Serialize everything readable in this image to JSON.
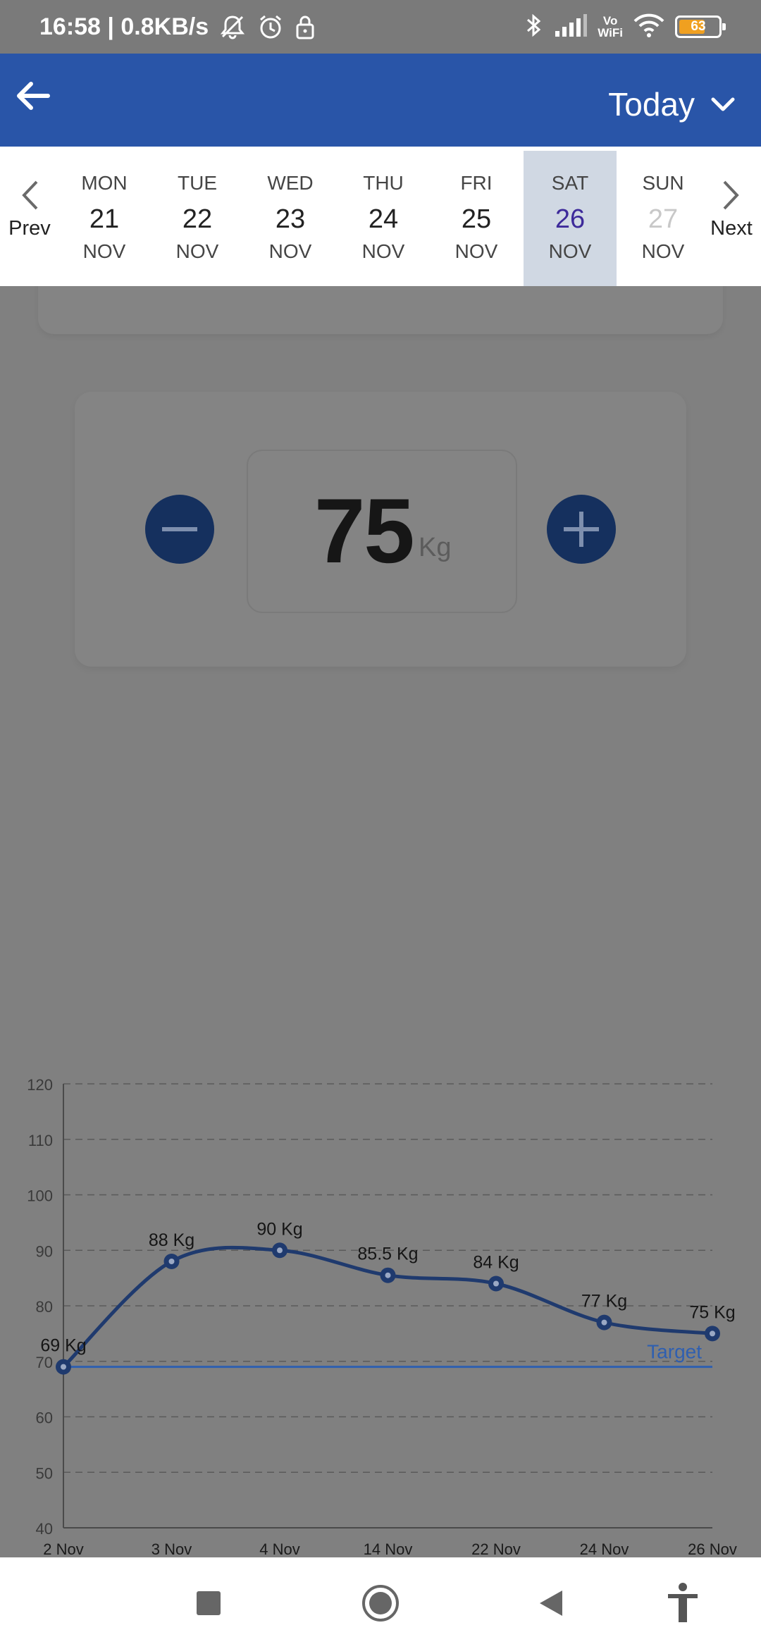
{
  "status_bar": {
    "time": "16:58",
    "network_speed": "0.8KB/s",
    "battery_level": "63",
    "wifi_label_top": "Vo",
    "wifi_label_bottom": "WiFi",
    "icons": [
      "mute-icon",
      "alarm-icon",
      "lock-icon",
      "bluetooth-icon",
      "signal-icon",
      "wifi-icon",
      "battery-icon"
    ]
  },
  "app_bar": {
    "back_icon": "arrow-left-icon",
    "period_label": "Today",
    "period_icon": "chevron-down-icon"
  },
  "date_strip": {
    "prev_label": "Prev",
    "next_label": "Next",
    "days": [
      {
        "dow": "MON",
        "num": "21",
        "mon": "NOV"
      },
      {
        "dow": "TUE",
        "num": "22",
        "mon": "NOV"
      },
      {
        "dow": "WED",
        "num": "23",
        "mon": "NOV"
      },
      {
        "dow": "THU",
        "num": "24",
        "mon": "NOV"
      },
      {
        "dow": "FRI",
        "num": "25",
        "mon": "NOV"
      },
      {
        "dow": "SAT",
        "num": "26",
        "mon": "NOV"
      },
      {
        "dow": "SUN",
        "num": "27",
        "mon": "NOV"
      }
    ],
    "selected_day": "26",
    "future_day": "27"
  },
  "weight_entry": {
    "value": "75",
    "unit": "Kg",
    "decrement_icon": "minus-icon",
    "increment_icon": "plus-icon"
  },
  "colors": {
    "app_bar": "#2955a8",
    "overlay": "#808080",
    "button_dark": "#15305e",
    "chart_line": "#1f3a6e",
    "target_line": "#2f5fb0",
    "selected_day_bg": "#d0d8e3",
    "selected_day_text": "#3d2a9a"
  },
  "chart_data": {
    "type": "line",
    "categories": [
      "2 Nov",
      "3 Nov",
      "4 Nov",
      "14 Nov",
      "22 Nov",
      "24 Nov",
      "26 Nov"
    ],
    "values": [
      69,
      88,
      90,
      85.5,
      84,
      77,
      75
    ],
    "data_labels": [
      "69 Kg",
      "88 Kg",
      "90 Kg",
      "85.5 Kg",
      "84 Kg",
      "77 Kg",
      "75 Kg"
    ],
    "y_ticks": [
      40,
      50,
      60,
      70,
      80,
      90,
      100,
      110,
      120
    ],
    "ylim": [
      40,
      120
    ],
    "target": {
      "value": 69,
      "label": "Target"
    },
    "grid": "dashed",
    "smooth": true,
    "title": "",
    "xlabel": "",
    "ylabel": ""
  },
  "bottom_nav": {
    "icons": [
      "recent-apps-icon",
      "home-icon",
      "back-icon",
      "accessibility-icon"
    ]
  }
}
